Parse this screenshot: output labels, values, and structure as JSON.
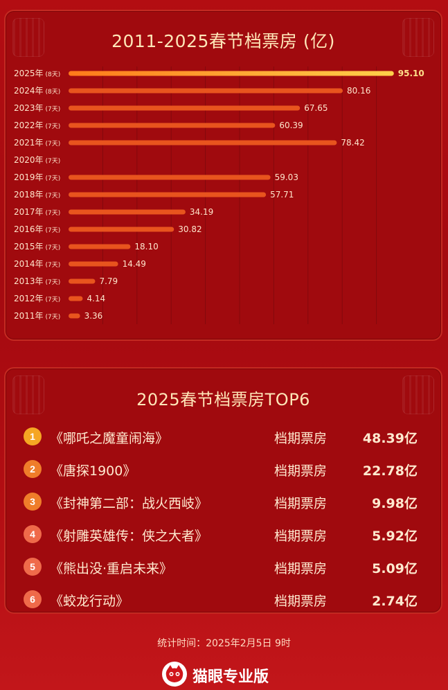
{
  "chart_data": {
    "type": "bar",
    "orientation": "horizontal",
    "title": "2011-2025春节档票房 (亿)",
    "categories": [
      "2025年",
      "2024年",
      "2023年",
      "2022年",
      "2021年",
      "2020年",
      "2019年",
      "2018年",
      "2017年",
      "2016年",
      "2015年",
      "2014年",
      "2013年",
      "2012年",
      "2011年"
    ],
    "durations": [
      "(8天)",
      "(8天)",
      "(7天)",
      "(7天)",
      "(7天)",
      "(7天)",
      "(7天)",
      "(7天)",
      "(7天)",
      "(7天)",
      "(7天)",
      "(7天)",
      "(7天)",
      "(7天)",
      "(7天)"
    ],
    "values": [
      95.1,
      80.16,
      67.65,
      60.39,
      78.42,
      null,
      59.03,
      57.71,
      34.19,
      30.82,
      18.1,
      14.49,
      7.79,
      4.14,
      3.36
    ],
    "value_labels": [
      "95.10",
      "80.16",
      "67.65",
      "60.39",
      "78.42",
      "",
      "59.03",
      "57.71",
      "34.19",
      "30.82",
      "18.10",
      "14.49",
      "7.79",
      "4.14",
      "3.36"
    ],
    "xlim": [
      0,
      100
    ],
    "grid": true,
    "highlight_color": "#ffd04a",
    "bar_color": "#e8541e"
  },
  "top6": {
    "title": "2025春节档票房TOP6",
    "items": [
      {
        "rank": "1",
        "title": "《哪吒之魔童闹海》",
        "label": "档期票房",
        "value": "48.39亿",
        "color": "#f5a623"
      },
      {
        "rank": "2",
        "title": "《唐探1900》",
        "label": "档期票房",
        "value": "22.78亿",
        "color": "#ef7d2a"
      },
      {
        "rank": "3",
        "title": "《封神第二部：战火西岐》",
        "label": "档期票房",
        "value": "9.98亿",
        "color": "#ef7d2a"
      },
      {
        "rank": "4",
        "title": "《射雕英雄传：侠之大者》",
        "label": "档期票房",
        "value": "5.92亿",
        "color": "#ef6a4a"
      },
      {
        "rank": "5",
        "title": "《熊出没·重启未来》",
        "label": "档期票房",
        "value": "5.09亿",
        "color": "#ef6a4a"
      },
      {
        "rank": "6",
        "title": "《蛟龙行动》",
        "label": "档期票房",
        "value": "2.74亿",
        "color": "#ef6a4a"
      }
    ]
  },
  "footer": {
    "time": "统计时间：2025年2月5日  9时",
    "brand": "猫眼专业版",
    "brand_icon": "cat-eye-logo-icon"
  }
}
